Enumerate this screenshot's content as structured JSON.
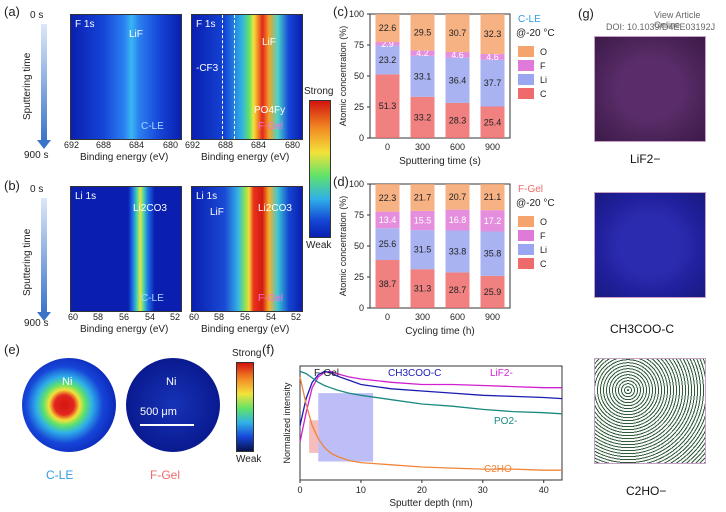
{
  "panels": {
    "a": "(a)",
    "b": "(b)",
    "c": "(c)",
    "d": "(d)",
    "e": "(e)",
    "f": "(f)",
    "g": "(g)"
  },
  "sputter": {
    "top": "0 s",
    "bottom": "900 s",
    "label": "Sputtering time"
  },
  "heatmaps": {
    "a_left": {
      "element": "F 1s",
      "tag": "C-LE",
      "ann": [
        "LiF"
      ],
      "xticks": [
        "692",
        "688",
        "684",
        "680"
      ]
    },
    "a_right": {
      "element": "F 1s",
      "tag": "F-Gel",
      "ann": [
        "LiF",
        "-CF3",
        "PO4Fy"
      ],
      "xticks": [
        "692",
        "688",
        "684",
        "680"
      ]
    },
    "b_left": {
      "element": "Li 1s",
      "tag": "C-LE",
      "ann": [
        "Li2CO3"
      ],
      "xticks": [
        "60",
        "58",
        "56",
        "54",
        "52"
      ]
    },
    "b_right": {
      "element": "Li 1s",
      "tag": "F-Gel",
      "ann": [
        "LiF",
        "Li2CO3"
      ],
      "xticks": [
        "60",
        "58",
        "56",
        "54",
        "52"
      ]
    },
    "xlabel": "Binding energy (eV)"
  },
  "colorbar": {
    "top": "Strong",
    "bottom": "Weak"
  },
  "colors": {
    "O": "#f6a46e",
    "F": "#e07ad8",
    "Li": "#9aa6ef",
    "C": "#ef6b6b"
  },
  "chart_data": [
    {
      "type": "bar",
      "panel": "c",
      "legend_title": "C-LE",
      "condition": "@-20 °C",
      "categories": [
        "0",
        "300",
        "600",
        "900"
      ],
      "xlabel": "Sputtering time (s)",
      "ylabel": "Atomic concentration (%)",
      "ylim": [
        0,
        100
      ],
      "yticks": [
        "0",
        "25",
        "50",
        "75",
        "100"
      ],
      "series": [
        {
          "name": "C",
          "values": [
            51.3,
            33.2,
            28.3,
            25.4
          ]
        },
        {
          "name": "Li",
          "values": [
            23.2,
            33.1,
            36.4,
            37.7
          ]
        },
        {
          "name": "F",
          "values": [
            2.9,
            4.2,
            4.6,
            4.6
          ]
        },
        {
          "name": "O",
          "values": [
            22.6,
            29.5,
            30.7,
            32.3
          ]
        }
      ]
    },
    {
      "type": "bar",
      "panel": "d",
      "legend_title": "F-Gel",
      "condition": "@-20 °C",
      "categories": [
        "0",
        "300",
        "600",
        "900"
      ],
      "xlabel": "Cycling time (h)",
      "ylabel": "Atomic concentration (%)",
      "ylim": [
        0,
        100
      ],
      "yticks": [
        "0",
        "25",
        "50",
        "75",
        "100"
      ],
      "series": [
        {
          "name": "C",
          "values": [
            38.7,
            31.3,
            28.7,
            25.9
          ]
        },
        {
          "name": "Li",
          "values": [
            25.6,
            31.5,
            33.8,
            35.8
          ]
        },
        {
          "name": "F",
          "values": [
            13.4,
            15.5,
            16.8,
            17.2
          ]
        },
        {
          "name": "O",
          "values": [
            22.3,
            21.7,
            20.7,
            21.1
          ]
        }
      ]
    },
    {
      "type": "line",
      "panel": "f",
      "title": "F-Gel",
      "xlabel": "Sputter depth (nm)",
      "ylabel": "Normalized intensity",
      "xlim": [
        0,
        43
      ],
      "ylim": [
        0,
        1.05
      ],
      "xticks": [
        "0",
        "10",
        "20",
        "30",
        "40"
      ],
      "series": [
        {
          "name": "LiF2-",
          "color": "#d11fd1",
          "x": [
            0,
            1,
            2,
            3,
            4,
            5,
            6,
            8,
            10,
            15,
            20,
            25,
            30,
            35,
            40,
            43
          ],
          "y": [
            0.35,
            0.62,
            0.85,
            0.95,
            0.99,
            1.0,
            0.98,
            0.95,
            0.93,
            0.9,
            0.88,
            0.88,
            0.87,
            0.86,
            0.85,
            0.85
          ]
        },
        {
          "name": "CH3COO-C",
          "color": "#1b1bb0",
          "x": [
            0,
            1,
            2,
            3,
            4,
            5,
            6,
            8,
            10,
            15,
            20,
            25,
            30,
            35,
            40,
            43
          ],
          "y": [
            0.5,
            0.75,
            0.9,
            0.97,
            1.0,
            0.99,
            0.96,
            0.92,
            0.88,
            0.84,
            0.82,
            0.8,
            0.78,
            0.77,
            0.76,
            0.75
          ]
        },
        {
          "name": "PO2-",
          "color": "#1a8a80",
          "x": [
            0,
            1,
            2,
            3,
            4,
            5,
            6,
            8,
            10,
            15,
            20,
            25,
            30,
            35,
            40,
            43
          ],
          "y": [
            1.0,
            0.98,
            0.94,
            0.9,
            0.87,
            0.85,
            0.83,
            0.8,
            0.78,
            0.74,
            0.7,
            0.68,
            0.65,
            0.63,
            0.62,
            0.61
          ]
        },
        {
          "name": "C2HO-",
          "color": "#f0853a",
          "x": [
            0,
            1,
            2,
            3,
            4,
            5,
            6,
            8,
            10,
            15,
            20,
            25,
            30,
            35,
            40,
            43
          ],
          "y": [
            0.95,
            0.7,
            0.5,
            0.38,
            0.3,
            0.25,
            0.22,
            0.18,
            0.16,
            0.14,
            0.12,
            0.11,
            0.1,
            0.1,
            0.09,
            0.09
          ]
        }
      ]
    }
  ],
  "panel_e": {
    "label_left": "C-LE",
    "label_right": "F-Gel",
    "ni": "Ni",
    "scale": "500 μm",
    "bar_top": "Strong",
    "bar_bottom": "Weak"
  },
  "panel_g": {
    "watermark1": "View Article Online",
    "watermark2": "DOI: 10.1039/D4EE03192J",
    "cubes": [
      "LiF2−",
      "CH3COO-C",
      "C2HO−"
    ]
  }
}
